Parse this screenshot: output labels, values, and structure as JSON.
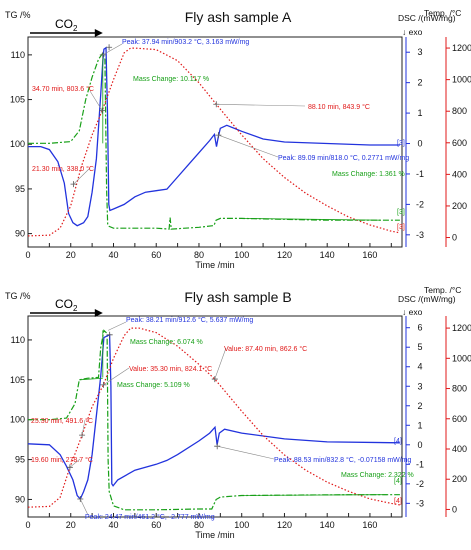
{
  "colors": {
    "tg": "#18a018",
    "dsc": "#2233dd",
    "temp": "#e01818",
    "axis": "#222222"
  },
  "chart_data": [
    {
      "type": "line",
      "title": "Fly ash sample A",
      "xlabel": "Time /min",
      "xlim": [
        0,
        175
      ],
      "x_ticks": [
        "0",
        "10",
        "20",
        "30",
        "40",
        "50",
        "60",
        "70",
        "80",
        "90",
        "100",
        "110",
        "120",
        "130",
        "140",
        "150",
        "160",
        "170"
      ],
      "tg_axis": {
        "label": "TG /%",
        "ylim": [
          88.5,
          112
        ],
        "ticks": [
          "110",
          "105",
          "100",
          "95",
          "90"
        ],
        "tick_values": [
          110,
          105,
          100,
          95,
          90
        ]
      },
      "dsc_axis": {
        "label": "DSC /(mW/mg)",
        "direction": "↓ exo",
        "ylim": [
          -3.4,
          3.5
        ],
        "ticks": [
          "3",
          "2",
          "1",
          "0",
          "-1",
          "-2",
          "-3"
        ],
        "tick_values": [
          3,
          2,
          1,
          0,
          -1,
          -2,
          -3
        ]
      },
      "temp_axis": {
        "label": "Temp. /°C",
        "ylim": [
          -60,
          1270
        ],
        "ticks": [
          "1200",
          "1000",
          "800",
          "600",
          "400",
          "200",
          "0"
        ],
        "tick_values": [
          1200,
          1000,
          800,
          600,
          400,
          200,
          0
        ]
      },
      "gas_label": "CO",
      "gas_sub": "2",
      "gas_range": [
        0,
        35
      ],
      "series": [
        {
          "axis": "tg",
          "values": [
            [
              0,
              100.1
            ],
            [
              10,
              100.1
            ],
            [
              20,
              100.3
            ],
            [
              24,
              101.5
            ],
            [
              27,
              105
            ],
            [
              30,
              107.5
            ],
            [
              33,
              109.5
            ],
            [
              35,
              110.2
            ],
            [
              36,
              109.5
            ],
            [
              36.8,
              95
            ],
            [
              37.3,
              91
            ],
            [
              38,
              90.8
            ],
            [
              40,
              90.6
            ],
            [
              60,
              90.6
            ],
            [
              66,
              90.5
            ],
            [
              66.5,
              91.8
            ],
            [
              67,
              90.5
            ],
            [
              80,
              90.7
            ],
            [
              87,
              90.9
            ],
            [
              88,
              91.5
            ],
            [
              90,
              91.7
            ],
            [
              100,
              91.7
            ],
            [
              140,
              91.5
            ],
            [
              174,
              91.5
            ]
          ]
        },
        {
          "axis": "dsc",
          "values": [
            [
              0,
              -0.1
            ],
            [
              6,
              -0.1
            ],
            [
              10,
              -0.2
            ],
            [
              14,
              -0.6
            ],
            [
              17,
              -1.3
            ],
            [
              19,
              -2.3
            ],
            [
              21,
              -2.6
            ],
            [
              23,
              -2.7
            ],
            [
              26,
              -2.6
            ],
            [
              28,
              -2.4
            ],
            [
              30,
              -1.6
            ],
            [
              32,
              -0.5
            ],
            [
              34,
              1.6
            ],
            [
              35,
              2.7
            ],
            [
              35.5,
              3.1
            ],
            [
              36.5,
              3.15
            ],
            [
              37.2,
              1
            ],
            [
              37.8,
              -2
            ],
            [
              38.3,
              -2.2
            ],
            [
              40,
              -2.15
            ],
            [
              45,
              -2.0
            ],
            [
              50,
              -1.75
            ],
            [
              55,
              -1.6
            ],
            [
              60,
              -1.55
            ],
            [
              65,
              -1.5
            ],
            [
              70,
              -1.1
            ],
            [
              75,
              -0.7
            ],
            [
              80,
              -0.3
            ],
            [
              85,
              0.1
            ],
            [
              87.2,
              0.3
            ],
            [
              88.2,
              -0.1
            ],
            [
              89,
              0.2
            ],
            [
              90,
              0.5
            ],
            [
              93,
              0.6
            ],
            [
              100,
              0.4
            ],
            [
              110,
              0.15
            ],
            [
              120,
              0.05
            ],
            [
              140,
              0
            ],
            [
              160,
              -0.05
            ],
            [
              174,
              -0.05
            ]
          ]
        },
        {
          "axis": "temp",
          "values": [
            [
              0,
              10
            ],
            [
              10,
              15
            ],
            [
              15,
              60
            ],
            [
              20,
              200
            ],
            [
              25,
              450
            ],
            [
              30,
              650
            ],
            [
              34.7,
              803.6
            ],
            [
              40,
              1000
            ],
            [
              45,
              1170
            ],
            [
              48,
              1200
            ],
            [
              50,
              1200
            ],
            [
              60,
              1190
            ],
            [
              70,
              1120
            ],
            [
              80,
              980
            ],
            [
              88.1,
              843.9
            ],
            [
              100,
              650
            ],
            [
              110,
              500
            ],
            [
              120,
              380
            ],
            [
              130,
              280
            ],
            [
              140,
              200
            ],
            [
              150,
              130
            ],
            [
              160,
              80
            ],
            [
              170,
              40
            ],
            [
              174,
              30
            ]
          ]
        }
      ],
      "annotations": [
        {
          "text": "Peak: 37.94 min/903.2 °C, 3.163 mW/mg",
          "color": "dsc"
        },
        {
          "text": "34.70 min, 803.6 °C",
          "color": "temp"
        },
        {
          "text": "Mass Change: 10.117 %",
          "color": "tg"
        },
        {
          "text": "88.10 min, 843.9 °C",
          "color": "temp"
        },
        {
          "text": "21.30 min, 338.0 °C",
          "color": "temp"
        },
        {
          "text": "Peak: 89.09 min/818.0 °C, 0.2771 mW/mg",
          "color": "dsc"
        },
        {
          "text": "Mass Change: 1.361 %",
          "color": "tg"
        },
        {
          "text": "[3]",
          "color": "dsc"
        },
        {
          "text": "[3]",
          "color": "tg"
        },
        {
          "text": "[3]",
          "color": "temp"
        }
      ]
    },
    {
      "type": "line",
      "title": "Fly ash sample B",
      "xlabel": "Time /min",
      "xlim": [
        0,
        175
      ],
      "x_ticks": [
        "0",
        "10",
        "20",
        "30",
        "40",
        "50",
        "60",
        "70",
        "80",
        "90",
        "100",
        "110",
        "120",
        "130",
        "140",
        "150",
        "160",
        "170"
      ],
      "tg_axis": {
        "label": "TG /%",
        "ylim": [
          87.8,
          113
        ],
        "ticks": [
          "110",
          "105",
          "100",
          "95",
          "90"
        ],
        "tick_values": [
          110,
          105,
          100,
          95,
          90
        ]
      },
      "dsc_axis": {
        "label": "DSC /(mW/mg)",
        "direction": "↓ exo",
        "ylim": [
          -3.7,
          6.6
        ],
        "ticks": [
          "6",
          "5",
          "4",
          "3",
          "2",
          "1",
          "0",
          "-1",
          "-2",
          "-3"
        ],
        "tick_values": [
          6,
          5,
          4,
          3,
          2,
          1,
          0,
          -1,
          -2,
          -3
        ]
      },
      "temp_axis": {
        "label": "Temp. /°C",
        "ylim": [
          -50,
          1280
        ],
        "ticks": [
          "1200",
          "1000",
          "800",
          "600",
          "400",
          "200",
          "0"
        ],
        "tick_values": [
          1200,
          1000,
          800,
          600,
          400,
          200,
          0
        ]
      },
      "gas_label": "CO",
      "gas_sub": "2",
      "gas_range": [
        0,
        35
      ],
      "series": [
        {
          "axis": "tg",
          "values": [
            [
              0,
              100
            ],
            [
              10,
              100
            ],
            [
              18,
              100.2
            ],
            [
              22,
              102
            ],
            [
              24,
              105
            ],
            [
              28,
              105.2
            ],
            [
              33,
              105.3
            ],
            [
              34,
              109
            ],
            [
              35.5,
              111.2
            ],
            [
              37,
              110.8
            ],
            [
              37.5,
              95
            ],
            [
              38,
              91
            ],
            [
              40,
              89.2
            ],
            [
              45,
              88.7
            ],
            [
              60,
              88.7
            ],
            [
              80,
              88.8
            ],
            [
              86,
              88.8
            ],
            [
              88,
              90
            ],
            [
              90,
              90.3
            ],
            [
              100,
              90.5
            ],
            [
              150,
              90.6
            ],
            [
              174,
              90.6
            ]
          ]
        },
        {
          "axis": "dsc",
          "values": [
            [
              0,
              0.05
            ],
            [
              10,
              0
            ],
            [
              15,
              -0.5
            ],
            [
              18,
              -1.1
            ],
            [
              21,
              -1.8
            ],
            [
              23,
              -2.6
            ],
            [
              24.47,
              -2.777
            ],
            [
              26,
              -2.4
            ],
            [
              28,
              -1.8
            ],
            [
              30,
              -0.5
            ],
            [
              32,
              1.5
            ],
            [
              34,
              3.5
            ],
            [
              35.5,
              5.5
            ],
            [
              38.2,
              5.637
            ],
            [
              38.8,
              3
            ],
            [
              39.2,
              -2
            ],
            [
              39.8,
              -2.1
            ],
            [
              42,
              -1.8
            ],
            [
              50,
              -1.3
            ],
            [
              60,
              -1.0
            ],
            [
              65,
              -0.8
            ],
            [
              70,
              -0.5
            ],
            [
              80,
              0.2
            ],
            [
              85,
              0.6
            ],
            [
              87.5,
              0.9
            ],
            [
              88.5,
              0
            ],
            [
              89.5,
              0.6
            ],
            [
              92,
              0.8
            ],
            [
              100,
              0.6
            ],
            [
              120,
              0.3
            ],
            [
              140,
              0.15
            ],
            [
              174,
              0.1
            ]
          ]
        },
        {
          "axis": "temp",
          "values": [
            [
              0,
              15
            ],
            [
              10,
              20
            ],
            [
              15,
              80
            ],
            [
              19.6,
              278.7
            ],
            [
              25.3,
              491.6
            ],
            [
              30,
              680
            ],
            [
              35.3,
              824.1
            ],
            [
              40,
              1000
            ],
            [
              45,
              1150
            ],
            [
              48,
              1200
            ],
            [
              52,
              1200
            ],
            [
              60,
              1170
            ],
            [
              70,
              1080
            ],
            [
              80,
              960
            ],
            [
              87.4,
              862.6
            ],
            [
              100,
              650
            ],
            [
              110,
              490
            ],
            [
              120,
              360
            ],
            [
              130,
              260
            ],
            [
              140,
              180
            ],
            [
              150,
              120
            ],
            [
              160,
              70
            ],
            [
              170,
              40
            ],
            [
              174,
              30
            ]
          ]
        }
      ],
      "annotations": [
        {
          "text": "Peak: 38.21 min/912.6 °C, 5.637 mW/mg",
          "color": "dsc"
        },
        {
          "text": "Mass Change: 6.074 %",
          "color": "tg"
        },
        {
          "text": "Value: 87.40 min, 862.6 °C",
          "color": "temp"
        },
        {
          "text": "Value: 35.30 min, 824.1 °C",
          "color": "temp"
        },
        {
          "text": "Mass Change: 5.109 %",
          "color": "tg"
        },
        {
          "text": "25.30 min, 491.6 °C",
          "color": "temp"
        },
        {
          "text": "19.60 min, 278.7 °C",
          "color": "temp"
        },
        {
          "text": "Peak: 88.53 min/832.8 °C, -0.07158 mW/mg",
          "color": "dsc"
        },
        {
          "text": "Mass Change: 2.322 %",
          "color": "tg"
        },
        {
          "text": "Peak: 24.47 min/461.2 °C, -2.777 mW/mg",
          "color": "dsc"
        },
        {
          "text": "[4]",
          "color": "dsc"
        },
        {
          "text": "[4]",
          "color": "tg"
        },
        {
          "text": "[4]",
          "color": "temp"
        }
      ]
    }
  ]
}
